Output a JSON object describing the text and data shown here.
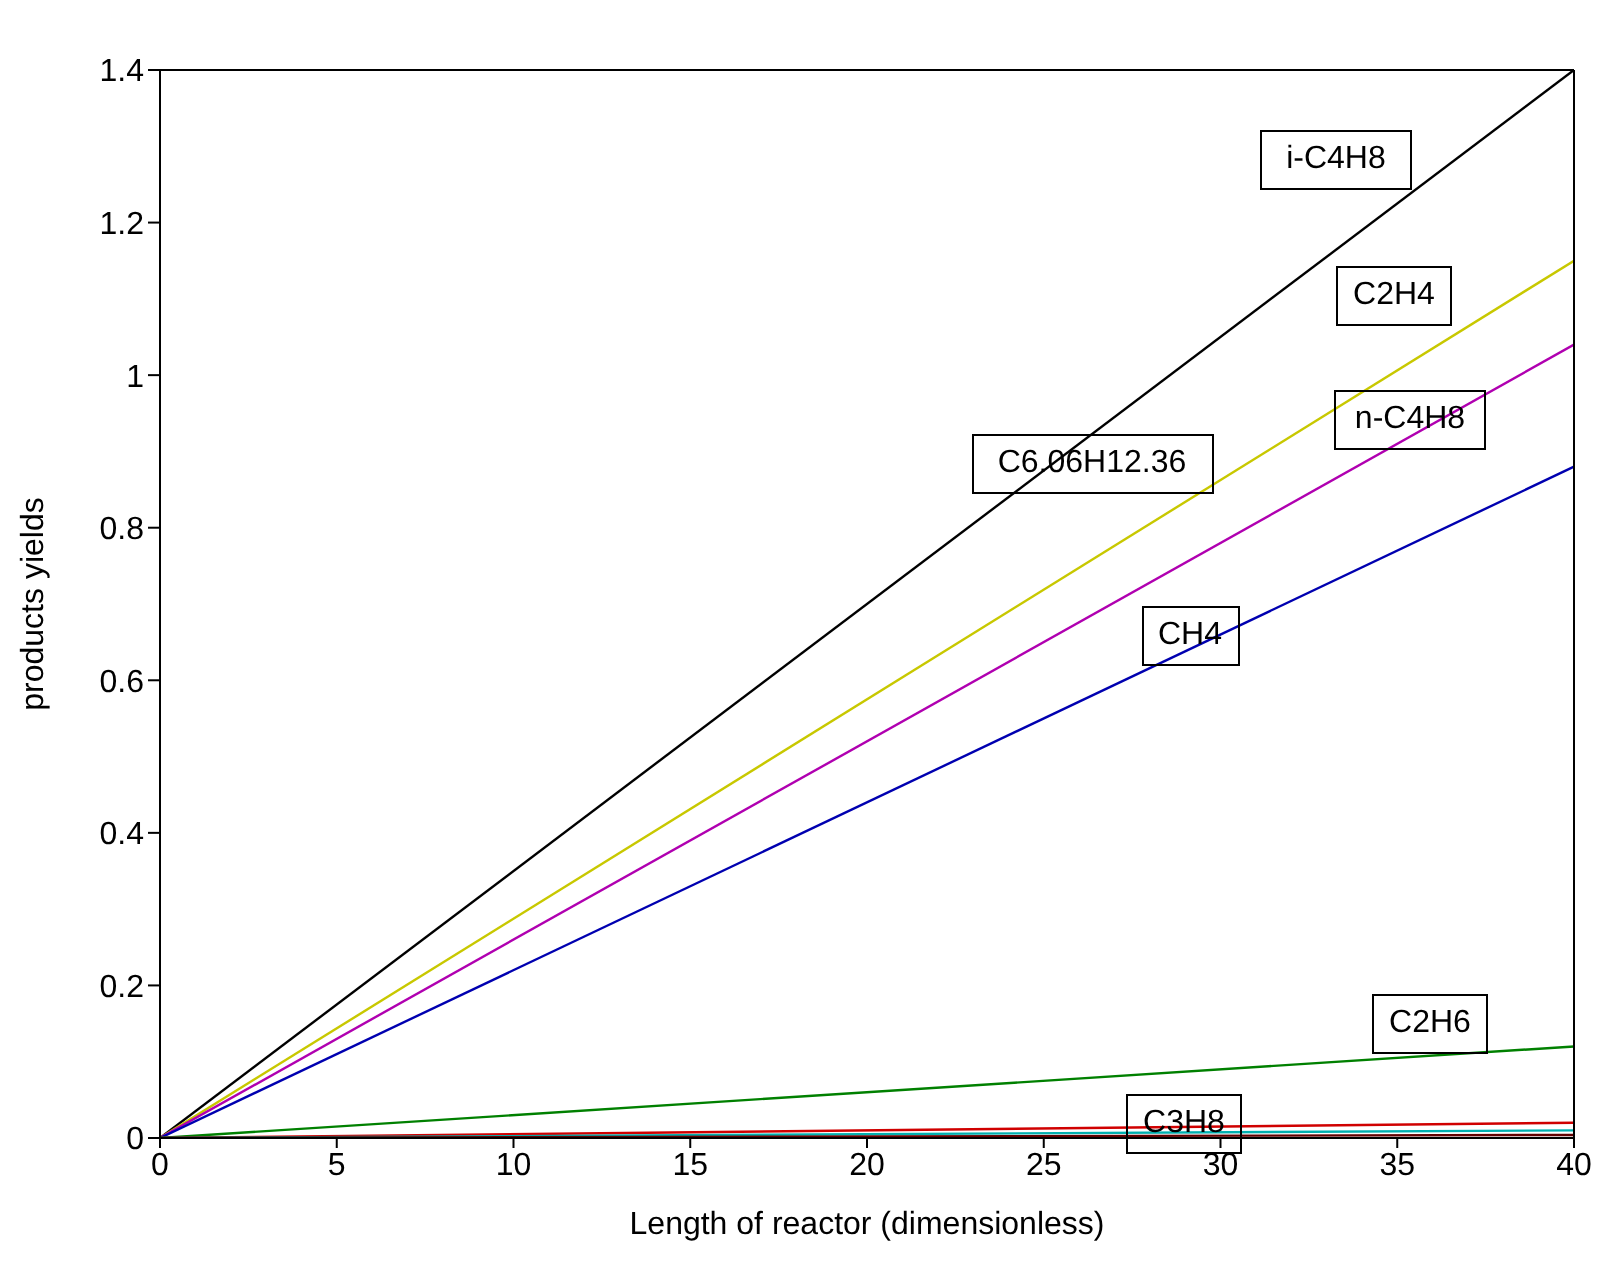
{
  "chart_data": {
    "type": "line",
    "xlabel": "Length of reactor (dimensionless)",
    "ylabel": "products yields",
    "xlim": [
      0,
      40
    ],
    "xticks": [
      0,
      5,
      10,
      15,
      20,
      25,
      30,
      35,
      40
    ],
    "ylim": [
      0,
      1.4
    ],
    "yticks": [
      0,
      0.2,
      0.4,
      0.6,
      0.8,
      1,
      1.2,
      1.4
    ],
    "marker": "none",
    "line_style": "solid",
    "x": [
      0,
      40
    ],
    "series": [
      {
        "color": "#000000",
        "values": [
          0,
          1.4
        ]
      },
      {
        "color": "#c8c800",
        "values": [
          0,
          1.15
        ]
      },
      {
        "color": "#b000b0",
        "values": [
          0,
          1.04
        ]
      },
      {
        "color": "#0000b0",
        "values": [
          0,
          0.88
        ]
      },
      {
        "color": "#008000",
        "values": [
          0,
          0.12
        ]
      },
      {
        "color": "#d00000",
        "values": [
          0,
          0.02
        ]
      },
      {
        "color": "#00b0b0",
        "values": [
          0,
          0.01
        ]
      },
      {
        "color": "#600000",
        "values": [
          0,
          0.004
        ]
      }
    ],
    "annotations": [
      "i-C4H8",
      "C2H4",
      "n-C4H8",
      "C6.06H12.36",
      "CH4",
      "C2H6",
      "C3H8"
    ]
  }
}
